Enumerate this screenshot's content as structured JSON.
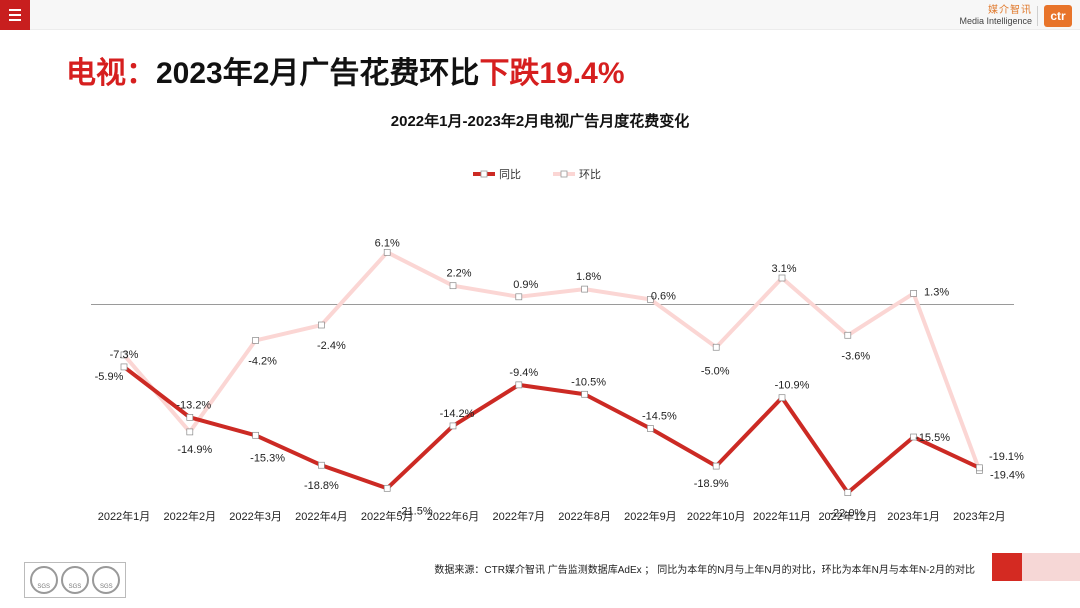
{
  "header": {
    "brand_cn": "媒介智讯",
    "brand_en": "Media Intelligence",
    "logo_text": "ctr"
  },
  "headline": {
    "part1": "电视：",
    "part2": "2023年2月广告花费环比",
    "part3": "下跌19.4%"
  },
  "chart_data": {
    "type": "line",
    "title": "2022年1月-2023年2月电视广告月度花费变化",
    "categories": [
      "2022年1月",
      "2022年2月",
      "2022年3月",
      "2022年4月",
      "2022年5月",
      "2022年6月",
      "2022年7月",
      "2022年8月",
      "2022年9月",
      "2022年10月",
      "2022年11月",
      "2022年12月",
      "2023年1月",
      "2023年2月"
    ],
    "series": [
      {
        "name": "同比",
        "color": "#cc2a24",
        "values": [
          -7.3,
          -13.2,
          -15.3,
          -18.8,
          -21.5,
          -14.2,
          -9.4,
          -10.5,
          -14.5,
          -18.9,
          -10.9,
          -22.0,
          -15.5,
          -19.1
        ]
      },
      {
        "name": "环比",
        "color": "#fbd6d4",
        "values": [
          -5.9,
          -14.9,
          -4.2,
          -2.4,
          6.1,
          2.2,
          0.9,
          1.8,
          0.6,
          -5.0,
          3.1,
          -3.6,
          1.3,
          -19.4
        ]
      }
    ],
    "ylim": [
      -25,
      10
    ],
    "legend_position": "top-center",
    "zero_line": true,
    "grid": false
  },
  "footer": {
    "source": "数据来源：CTR媒介智讯 广告监测数据库AdEx ； 同比为本年的N月与上年N月的对比，环比为本年N月与本年N-2月的对比",
    "badge_label": "SGS"
  }
}
